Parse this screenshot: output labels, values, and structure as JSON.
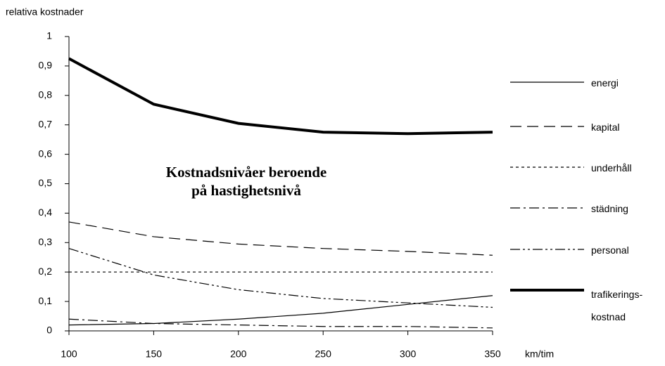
{
  "chart_data": {
    "type": "line",
    "title": "Kostnadsnivåer beroende\npå hastighetsnivå",
    "y_label": "relativa kostnader",
    "x_label": "km/tim",
    "x": [
      100,
      150,
      200,
      250,
      300,
      350
    ],
    "xlim": [
      100,
      350
    ],
    "xticks": [
      100,
      150,
      200,
      250,
      300,
      350
    ],
    "ylim": [
      0,
      1
    ],
    "yticks": [
      0,
      {
        "value": 0.1,
        "label": "0,1"
      },
      {
        "value": 0.2,
        "label": "0,2"
      },
      {
        "value": 0.3,
        "label": "0,3"
      },
      {
        "value": 0.4,
        "label": "0,4"
      },
      {
        "value": 0.5,
        "label": "0,5"
      },
      {
        "value": 0.6,
        "label": "0,6"
      },
      {
        "value": 0.7,
        "label": "0,7"
      },
      {
        "value": 0.8,
        "label": "0,8"
      },
      {
        "value": 0.9,
        "label": "0,9"
      },
      1
    ],
    "grid": false,
    "legend": "right",
    "series": [
      {
        "name": "energi",
        "color": "#000000",
        "style": "solid",
        "values": [
          0.02,
          0.025,
          0.04,
          0.06,
          0.09,
          0.12
        ]
      },
      {
        "name": "kapital",
        "color": "#000000",
        "style": "dashed",
        "values": [
          0.37,
          0.32,
          0.295,
          0.28,
          0.27,
          0.257
        ]
      },
      {
        "name": "underhåll",
        "color": "#000000",
        "style": "dotted",
        "values": [
          0.2,
          0.2,
          0.2,
          0.2,
          0.2,
          0.2
        ]
      },
      {
        "name": "städning",
        "color": "#000000",
        "style": "dashdot",
        "values": [
          0.04,
          0.025,
          0.02,
          0.015,
          0.015,
          0.01
        ]
      },
      {
        "name": "personal",
        "color": "#000000",
        "style": "dashdotdot",
        "values": [
          0.28,
          0.19,
          0.14,
          0.11,
          0.095,
          0.08
        ]
      },
      {
        "name": "trafikerings-\nkostnad",
        "color": "#000000",
        "style": "thick",
        "values": [
          0.925,
          0.77,
          0.705,
          0.675,
          0.67,
          0.675
        ]
      }
    ]
  }
}
